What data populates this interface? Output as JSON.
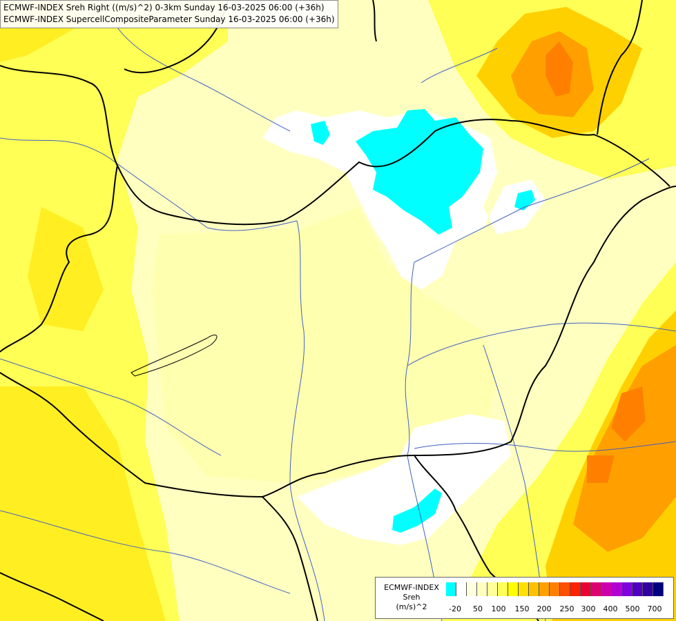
{
  "header": {
    "line1": "ECMWF-INDEX Sreh Right ((m/s)^2) 0-3km Sunday 16-03-2025 06:00 (+36h)",
    "line2": "ECMWF-INDEX SupercellCompositeParameter Sunday 16-03-2025 06:00 (+36h)"
  },
  "legend": {
    "title": "ECMWF-INDEX",
    "variable": "Sreh",
    "unit": "(m/s)^2",
    "swatch_colors": [
      "#00ffff",
      "#ffffff",
      "#ffffe0",
      "#ffffc0",
      "#ffff9a",
      "#ffff5a",
      "#ffff00",
      "#ffe000",
      "#ffc000",
      "#ffa000",
      "#ff8000",
      "#ff5000",
      "#ff2000",
      "#ee0030",
      "#e00070",
      "#cc00aa",
      "#b000d0",
      "#8000e0",
      "#5000c0",
      "#3000a0",
      "#000080"
    ],
    "ticks": [
      "-20",
      "50",
      "100",
      "150",
      "200",
      "250",
      "300",
      "400",
      "500",
      "700"
    ]
  },
  "colors": {
    "cyan": "#00ffff",
    "white": "#ffffff",
    "pale_yellow": "#ffffc0",
    "light_yellow": "#ffff90",
    "yellow": "#ffff40",
    "bright_yellow": "#ffee00",
    "gold": "#ffd000",
    "orange": "#ffa000",
    "dark_orange": "#ff8000",
    "border": "#000000",
    "river": "#4060c0"
  }
}
